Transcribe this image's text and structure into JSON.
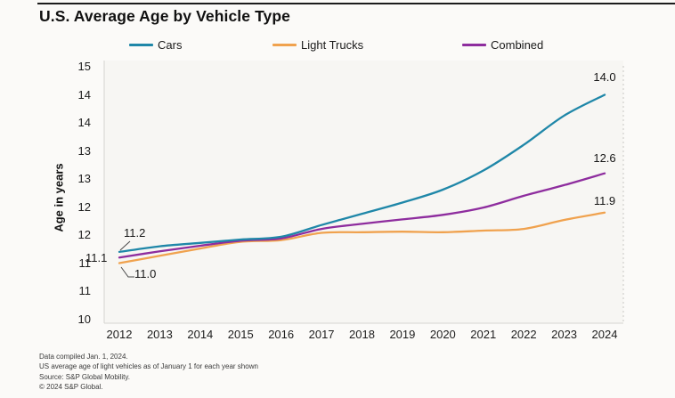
{
  "title": "U.S. Average Age by Vehicle Type",
  "legend": [
    {
      "label": "Cars",
      "color": "#1f87a8"
    },
    {
      "label": "Light Trucks",
      "color": "#f0a24e"
    },
    {
      "label": "Combined",
      "color": "#8e2d9e"
    }
  ],
  "y_axis_title": "Age in years",
  "chart_data": {
    "type": "line",
    "title": "U.S. Average Age by Vehicle Type",
    "xlabel": "",
    "ylabel": "Age in years",
    "x": [
      2012,
      2013,
      2014,
      2015,
      2016,
      2017,
      2018,
      2019,
      2020,
      2021,
      2022,
      2023,
      2024
    ],
    "series": [
      {
        "name": "Cars",
        "color": "#1f87a8",
        "values": [
          11.2,
          11.3,
          11.36,
          11.42,
          11.47,
          11.68,
          11.88,
          12.08,
          12.31,
          12.65,
          13.11,
          13.63,
          14.0
        ]
      },
      {
        "name": "Light Trucks",
        "color": "#f0a24e",
        "values": [
          11.0,
          11.13,
          11.26,
          11.38,
          11.41,
          11.54,
          11.55,
          11.56,
          11.55,
          11.58,
          11.61,
          11.77,
          11.9
        ]
      },
      {
        "name": "Combined",
        "color": "#8e2d9e",
        "values": [
          11.1,
          11.21,
          11.31,
          11.4,
          11.44,
          11.61,
          11.7,
          11.78,
          11.86,
          11.99,
          12.2,
          12.39,
          12.6
        ]
      }
    ],
    "ylim": [
      10,
      14.5
    ],
    "grid": false,
    "legend_position": "top",
    "y_ticks": [
      {
        "value": 14.5,
        "label": "15"
      },
      {
        "value": 14.0,
        "label": "14"
      },
      {
        "value": 13.5,
        "label": "14"
      },
      {
        "value": 13.0,
        "label": "13"
      },
      {
        "value": 12.5,
        "label": "13"
      },
      {
        "value": 12.0,
        "label": "12"
      },
      {
        "value": 11.5,
        "label": "12"
      },
      {
        "value": 11.0,
        "label": "11"
      },
      {
        "value": 10.5,
        "label": "11"
      },
      {
        "value": 10.0,
        "label": "10"
      }
    ],
    "x_tick_labels": [
      "2012",
      "2013",
      "2014",
      "2015",
      "2016",
      "2017",
      "2018",
      "2019",
      "2020",
      "2021",
      "2022",
      "2023",
      "2024"
    ],
    "annotations": {
      "start": {
        "cars": "11.2",
        "combined": "11.1",
        "light_trucks": "11.0"
      },
      "end": {
        "cars": "14.0",
        "combined": "12.6",
        "light_trucks": "11.9"
      }
    }
  },
  "footnotes": [
    "Data compiled Jan. 1, 2024.",
    "US average age of light vehicles as of January 1 for each year shown",
    "Source: S&P Global Mobility.",
    "© 2024 S&P Global."
  ]
}
